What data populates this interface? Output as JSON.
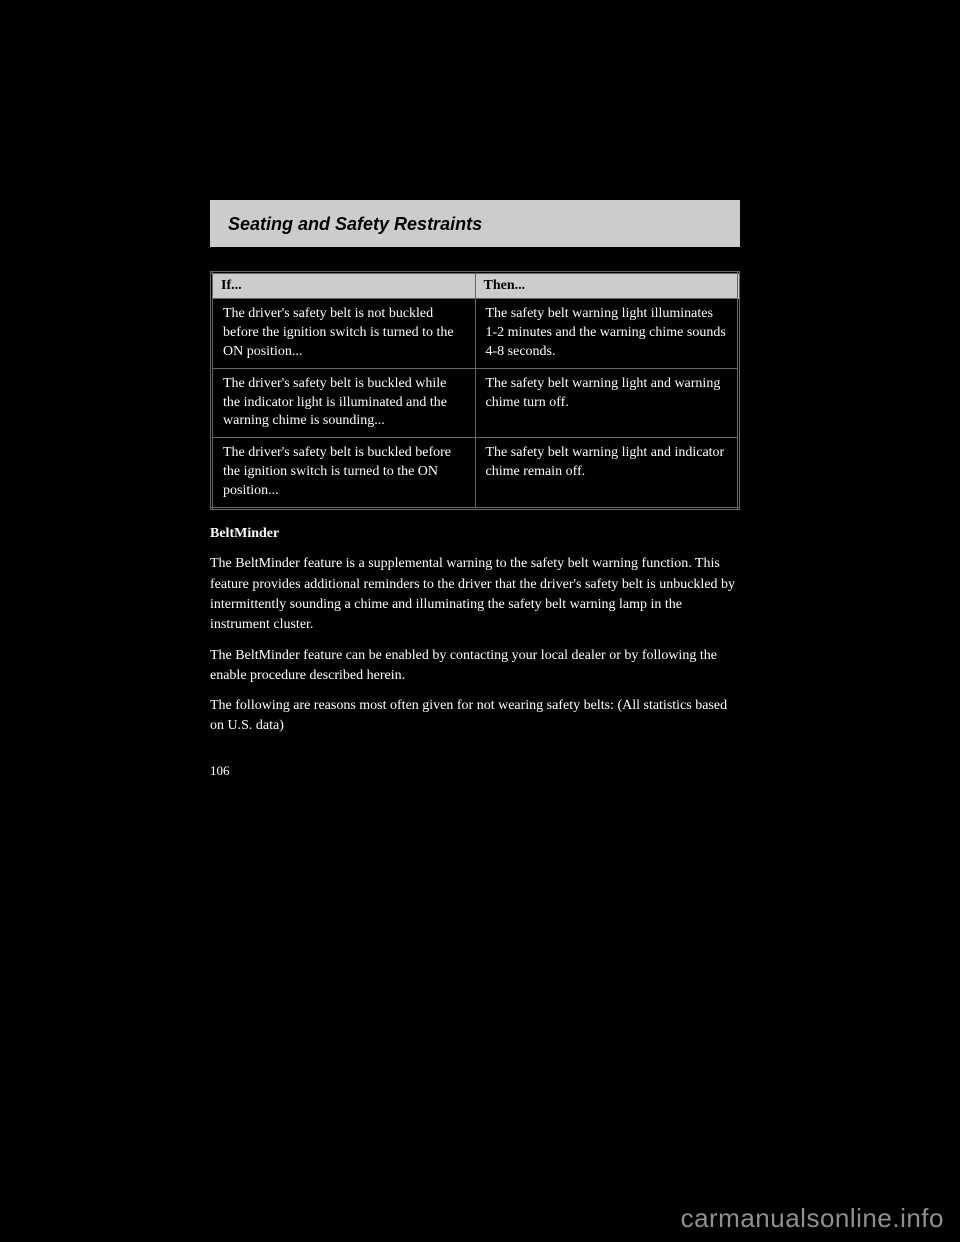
{
  "section_title": "Seating and Safety Restraints",
  "table": {
    "headers": [
      "If...",
      "Then..."
    ],
    "rows": [
      [
        "The driver's safety belt is not buckled before the ignition switch is turned to the ON position...",
        "The safety belt warning light illuminates 1-2 minutes and the warning chime sounds 4-8 seconds."
      ],
      [
        "The driver's safety belt is buckled while the indicator light is illuminated and the warning chime is sounding...",
        "The safety belt warning light and warning chime turn off."
      ],
      [
        "The driver's safety belt is buckled before the ignition switch is turned to the ON position...",
        "The safety belt warning light and indicator chime remain off."
      ]
    ]
  },
  "beltminder": {
    "heading": "BeltMinder",
    "p1_prefix": "The BeltMinder feature is a supplemental warning to the safety belt warning function. This feature provides additional reminders to the driver that the driver's safety belt is unbuckled by intermittently sounding a chime and illuminating the safety belt warning lamp in the instrument cluster.",
    "p2": "The BeltMinder feature can be enabled by contacting your local dealer or by following the enable procedure described herein.",
    "p3": "The following are reasons most often given for not wearing safety belts: (All statistics based on U.S. data)"
  },
  "page_number": "106",
  "watermark": "carmanualsonline.info"
}
